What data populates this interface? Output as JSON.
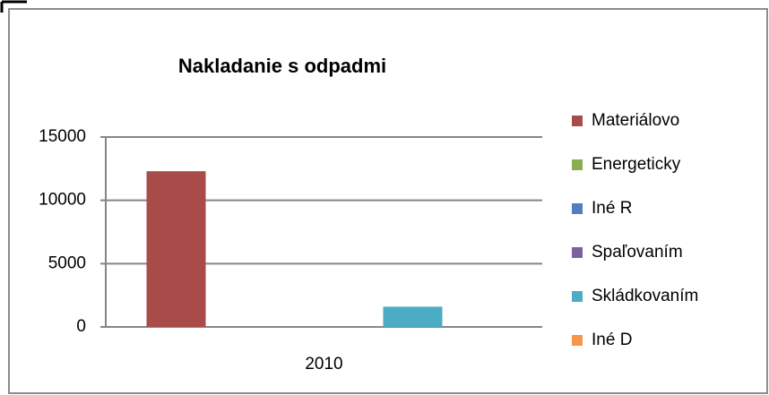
{
  "chart_data": {
    "type": "bar",
    "title": "Nakladanie s odpadmi",
    "categories": [
      "2010"
    ],
    "series": [
      {
        "name": "Materiálovo",
        "color": "#a94b49",
        "values": [
          12300
        ]
      },
      {
        "name": "Energeticky",
        "color": "#8aad4f",
        "values": [
          0
        ]
      },
      {
        "name": "Iné R",
        "color": "#4f7fbf",
        "values": [
          0
        ]
      },
      {
        "name": "Spaľovaním",
        "color": "#7d60a0",
        "values": [
          0
        ]
      },
      {
        "name": "Skládkovaním",
        "color": "#4bacc6",
        "values": [
          1600
        ]
      },
      {
        "name": "Iné D",
        "color": "#f79646",
        "values": [
          0
        ]
      }
    ],
    "ylim": [
      0,
      15000
    ],
    "yticks": [
      0,
      5000,
      10000,
      15000
    ],
    "grid": true,
    "legend": "right"
  }
}
